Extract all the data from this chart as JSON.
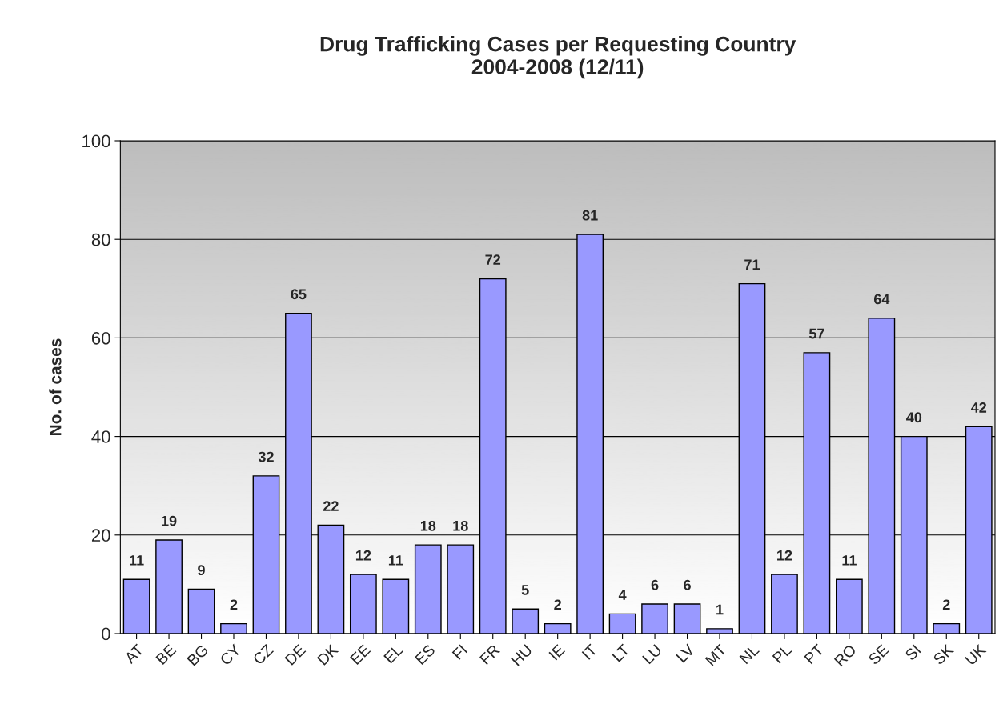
{
  "chart_data": {
    "type": "bar",
    "title": "Drug Trafficking Cases per Requesting Country\n2004-2008 (12/11)",
    "ylabel": "No. of cases",
    "categories": [
      "AT",
      "BE",
      "BG",
      "CY",
      "CZ",
      "DE",
      "DK",
      "EE",
      "EL",
      "ES",
      "FI",
      "FR",
      "HU",
      "IE",
      "IT",
      "LT",
      "LU",
      "LV",
      "MT",
      "NL",
      "PL",
      "PT",
      "RO",
      "SE",
      "SI",
      "SK",
      "UK"
    ],
    "values": [
      11,
      19,
      9,
      2,
      32,
      65,
      22,
      12,
      11,
      18,
      18,
      72,
      5,
      2,
      81,
      4,
      6,
      6,
      1,
      71,
      12,
      57,
      11,
      64,
      40,
      2,
      42
    ],
    "color": "#9999ff",
    "ylim": [
      0,
      100
    ],
    "yticks": [
      0,
      20,
      40,
      60,
      80,
      100
    ],
    "grid": "y",
    "legend": false,
    "data_labels": true
  }
}
